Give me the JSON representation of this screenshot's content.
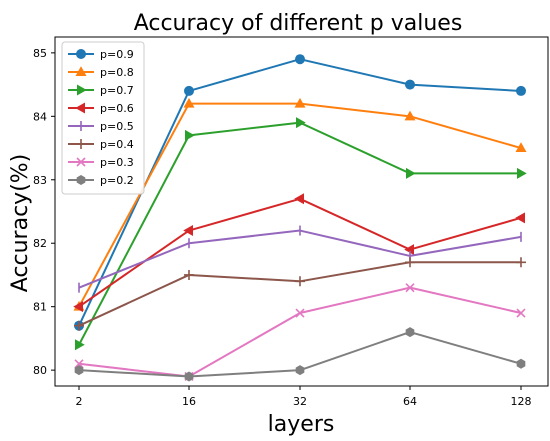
{
  "chart_data": {
    "type": "line",
    "title": "Accuracy of different p values",
    "xlabel": "layers",
    "ylabel": "Accuracy(%)",
    "x": [
      "2",
      "16",
      "32",
      "64",
      "128"
    ],
    "ylim": [
      79.75,
      85.25
    ],
    "yticks": [
      80,
      81,
      82,
      83,
      84,
      85
    ],
    "grid": false,
    "legend_position": "top-left",
    "series": [
      {
        "name": "p=0.9",
        "color": "#1f77b4",
        "marker": "circle",
        "values": [
          80.7,
          84.4,
          84.9,
          84.5,
          84.4
        ]
      },
      {
        "name": "p=0.8",
        "color": "#ff7f0e",
        "marker": "triangle-up",
        "values": [
          81.0,
          84.2,
          84.2,
          84.0,
          83.5
        ]
      },
      {
        "name": "p=0.7",
        "color": "#2ca02c",
        "marker": "triangle-right",
        "values": [
          80.4,
          83.7,
          83.9,
          83.1,
          83.1
        ]
      },
      {
        "name": "p=0.6",
        "color": "#d62728",
        "marker": "triangle-left",
        "values": [
          81.0,
          82.2,
          82.7,
          81.9,
          82.4
        ]
      },
      {
        "name": "p=0.5",
        "color": "#9467bd",
        "marker": "vline",
        "values": [
          81.3,
          82.0,
          82.2,
          81.8,
          82.1
        ]
      },
      {
        "name": "p=0.4",
        "color": "#8c564b",
        "marker": "plus",
        "values": [
          80.7,
          81.5,
          81.4,
          81.7,
          81.7
        ]
      },
      {
        "name": "p=0.3",
        "color": "#e377c2",
        "marker": "x",
        "values": [
          80.1,
          79.9,
          80.9,
          81.3,
          80.9
        ]
      },
      {
        "name": "p=0.2",
        "color": "#7f7f7f",
        "marker": "hexagon",
        "values": [
          80.0,
          79.9,
          80.0,
          80.6,
          80.1
        ]
      }
    ]
  }
}
